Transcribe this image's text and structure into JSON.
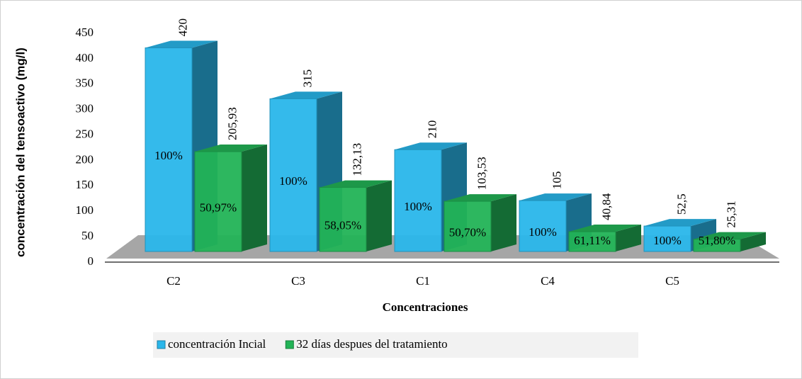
{
  "chart_data": {
    "type": "bar3d",
    "x_label": "Concentraciones",
    "y_label": "concentración del tensoactivo (mg/l)",
    "categories": [
      "C2",
      "C3",
      "C1",
      "C4",
      "C5"
    ],
    "series": [
      {
        "name": "concentración Incial",
        "color": "#29b6ea",
        "values": [
          420,
          315,
          210,
          105,
          52.5
        ],
        "value_labels": [
          "420",
          "315",
          "210",
          "105",
          "52,5"
        ],
        "inner_labels": [
          "100%",
          "100%",
          "100%",
          "100%",
          "100%"
        ]
      },
      {
        "name": "32 días despues del tratamiento",
        "color": "#22b356",
        "values": [
          205.93,
          132.13,
          103.53,
          40.84,
          25.31
        ],
        "value_labels": [
          "205,93",
          "132,13",
          "103,53",
          "40,84",
          "25,31"
        ],
        "inner_labels": [
          "50,97%",
          "58,05%",
          "50,70%",
          "61,11%",
          "51,80%"
        ]
      }
    ],
    "ylim": [
      0,
      450
    ],
    "yticks": [
      0,
      50,
      100,
      150,
      200,
      250,
      300,
      350,
      400,
      450
    ]
  }
}
